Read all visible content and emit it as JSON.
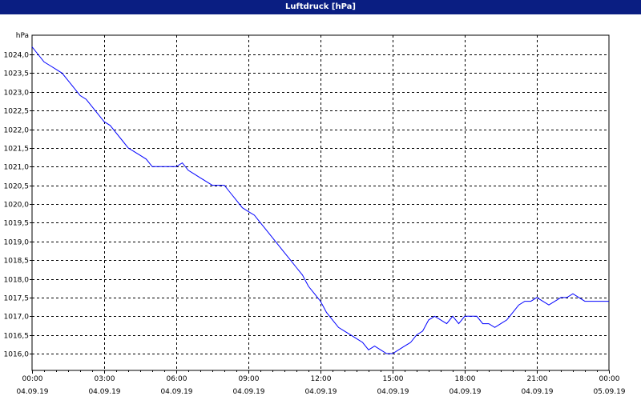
{
  "window": {
    "title": "Luftdruck [hPa]"
  },
  "colors": {
    "titlebar": "#0a1e82",
    "line": "#0000ff",
    "grid": "#000000"
  },
  "chart_data": {
    "type": "line",
    "title": "Luftdruck [hPa]",
    "ylabel": "hPa",
    "xlabel": "",
    "ylim": [
      1016.0,
      1024.0
    ],
    "xlim": [
      0,
      24
    ],
    "grid": true,
    "yticks": [
      "1024,0",
      "1023,5",
      "1023,0",
      "1022,5",
      "1022,0",
      "1021,5",
      "1021,0",
      "1020,5",
      "1020,0",
      "1019,5",
      "1019,0",
      "1018,5",
      "1018,0",
      "1017,5",
      "1017,0",
      "1016,5",
      "1016,0"
    ],
    "xticks": [
      {
        "time": "00:00",
        "date": "04.09.19"
      },
      {
        "time": "03:00",
        "date": "04.09.19"
      },
      {
        "time": "06:00",
        "date": "04.09.19"
      },
      {
        "time": "09:00",
        "date": "04.09.19"
      },
      {
        "time": "12:00",
        "date": "04.09.19"
      },
      {
        "time": "15:00",
        "date": "04.09.19"
      },
      {
        "time": "18:00",
        "date": "04.09.19"
      },
      {
        "time": "21:00",
        "date": "04.09.19"
      },
      {
        "time": "00:00",
        "date": "05.09.19"
      }
    ],
    "series": [
      {
        "x": [
          0,
          0.25,
          0.5,
          0.75,
          1.0,
          1.25,
          1.5,
          1.75,
          2.0,
          2.25,
          2.5,
          2.75,
          3.0,
          3.25,
          3.5,
          3.75,
          4.0,
          4.25,
          4.5,
          4.75,
          5.0,
          5.25,
          5.5,
          5.75,
          6.0,
          6.25,
          6.5,
          6.75,
          7.0,
          7.25,
          7.5,
          7.75,
          8.0,
          8.25,
          8.5,
          8.75,
          9.0,
          9.25,
          9.5,
          9.75,
          10.0,
          10.25,
          10.5,
          10.75,
          11.0,
          11.25,
          11.5,
          11.75,
          12.0,
          12.25,
          12.5,
          12.75,
          13.0,
          13.25,
          13.5,
          13.75,
          14.0,
          14.25,
          14.5,
          14.75,
          15.0,
          15.25,
          15.5,
          15.75,
          16.0,
          16.25,
          16.5,
          16.75,
          17.0,
          17.25,
          17.5,
          17.75,
          18.0,
          18.25,
          18.5,
          18.75,
          19.0,
          19.25,
          19.5,
          19.75,
          20.0,
          20.25,
          20.5,
          20.75,
          21.0,
          21.25,
          21.5,
          21.75,
          22.0,
          22.25,
          22.5,
          22.75,
          23.0,
          23.25,
          23.5,
          23.75,
          24.0
        ],
        "y": [
          1024.2,
          1024.0,
          1023.8,
          1023.7,
          1023.6,
          1023.5,
          1023.3,
          1023.1,
          1022.9,
          1022.8,
          1022.6,
          1022.4,
          1022.2,
          1022.1,
          1021.9,
          1021.7,
          1021.5,
          1021.4,
          1021.3,
          1021.2,
          1021.0,
          1021.0,
          1021.0,
          1021.0,
          1021.0,
          1021.1,
          1020.9,
          1020.8,
          1020.7,
          1020.6,
          1020.5,
          1020.5,
          1020.5,
          1020.3,
          1020.1,
          1019.9,
          1019.8,
          1019.7,
          1019.5,
          1019.3,
          1019.1,
          1018.9,
          1018.7,
          1018.5,
          1018.3,
          1018.1,
          1017.8,
          1017.6,
          1017.4,
          1017.1,
          1016.9,
          1016.7,
          1016.6,
          1016.5,
          1016.4,
          1016.3,
          1016.1,
          1016.2,
          1016.1,
          1016.0,
          1016.0,
          1016.1,
          1016.2,
          1016.3,
          1016.5,
          1016.6,
          1016.9,
          1017.0,
          1016.9,
          1016.8,
          1017.0,
          1016.8,
          1017.0,
          1017.0,
          1017.0,
          1016.8,
          1016.8,
          1016.7,
          1016.8,
          1016.9,
          1017.1,
          1017.3,
          1017.4,
          1017.4,
          1017.5,
          1017.4,
          1017.3,
          1017.4,
          1017.5,
          1017.5,
          1017.6,
          1017.5,
          1017.4,
          1017.4,
          1017.4,
          1017.4,
          1017.4
        ]
      }
    ]
  }
}
